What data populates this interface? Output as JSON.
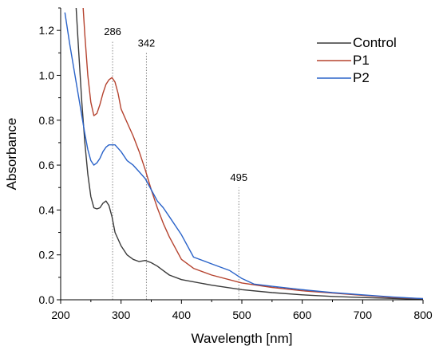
{
  "chart_data": {
    "type": "line",
    "xlabel": "Wavelength [nm]",
    "ylabel": "Absorbance",
    "xlim": [
      200,
      800
    ],
    "ylim": [
      0,
      1.3
    ],
    "xticks": [
      "200",
      "300",
      "400",
      "500",
      "600",
      "700",
      "800"
    ],
    "yticks": [
      "0.0",
      "0.2",
      "0.4",
      "0.6",
      "0.8",
      "1.0",
      "1.2"
    ],
    "grid": false,
    "legend_position": "top-right",
    "series": [
      {
        "name": "Control",
        "color": "#3a3a3a",
        "x": [
          225,
          230,
          235,
          240,
          245,
          250,
          255,
          260,
          265,
          270,
          275,
          280,
          285,
          290,
          300,
          310,
          320,
          330,
          340,
          350,
          360,
          370,
          380,
          400,
          450,
          500,
          550,
          600,
          650,
          700,
          750,
          800
        ],
        "y": [
          1.33,
          1.1,
          0.88,
          0.7,
          0.56,
          0.46,
          0.41,
          0.405,
          0.41,
          0.43,
          0.44,
          0.42,
          0.37,
          0.3,
          0.24,
          0.2,
          0.18,
          0.17,
          0.175,
          0.165,
          0.15,
          0.13,
          0.11,
          0.09,
          0.065,
          0.045,
          0.032,
          0.022,
          0.015,
          0.01,
          0.006,
          0.002
        ]
      },
      {
        "name": "P1",
        "color": "#b5432f",
        "x": [
          237,
          240,
          245,
          250,
          255,
          260,
          265,
          270,
          275,
          280,
          285,
          290,
          295,
          300,
          310,
          320,
          330,
          340,
          350,
          360,
          370,
          380,
          400,
          420,
          450,
          500,
          550,
          600,
          650,
          700,
          750,
          800
        ],
        "y": [
          1.31,
          1.18,
          1.0,
          0.88,
          0.82,
          0.83,
          0.87,
          0.92,
          0.96,
          0.98,
          0.99,
          0.97,
          0.92,
          0.85,
          0.79,
          0.73,
          0.66,
          0.58,
          0.49,
          0.41,
          0.34,
          0.28,
          0.18,
          0.14,
          0.11,
          0.075,
          0.055,
          0.04,
          0.03,
          0.02,
          0.01,
          0.005
        ]
      },
      {
        "name": "P2",
        "color": "#2a63c9",
        "x": [
          207,
          215,
          220,
          225,
          230,
          235,
          240,
          245,
          250,
          255,
          260,
          265,
          270,
          275,
          280,
          285,
          290,
          300,
          310,
          320,
          330,
          340,
          350,
          360,
          370,
          380,
          400,
          420,
          450,
          480,
          500,
          520,
          550,
          600,
          650,
          700,
          750,
          800
        ],
        "y": [
          1.28,
          1.14,
          1.06,
          0.98,
          0.9,
          0.82,
          0.74,
          0.67,
          0.62,
          0.6,
          0.61,
          0.63,
          0.66,
          0.68,
          0.69,
          0.69,
          0.69,
          0.66,
          0.62,
          0.6,
          0.57,
          0.54,
          0.49,
          0.44,
          0.41,
          0.37,
          0.29,
          0.19,
          0.16,
          0.13,
          0.095,
          0.07,
          0.06,
          0.045,
          0.032,
          0.022,
          0.012,
          0.005
        ]
      }
    ],
    "reference_lines": [
      {
        "x": 286,
        "label": "286",
        "ymax": 1.15
      },
      {
        "x": 342,
        "label": "342",
        "ymax": 1.1
      },
      {
        "x": 495,
        "label": "495",
        "ymax": 0.5
      }
    ]
  }
}
